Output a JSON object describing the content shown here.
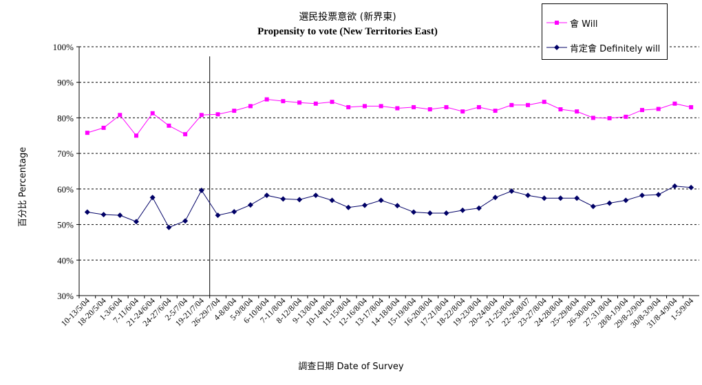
{
  "chart_data": {
    "type": "line",
    "title": "選民投票意欲 (新界東)",
    "subtitle": "Propensity to vote (New Territories East)",
    "ylabel": "百分比 Percentage",
    "xlabel": "調查日期 Date of Survey",
    "ylim": [
      30,
      100
    ],
    "yticks": [
      "30%",
      "40%",
      "50%",
      "60%",
      "70%",
      "80%",
      "90%",
      "100%"
    ],
    "grid": "horizontal dashed",
    "legend_position": "top-right",
    "vertical_marker_after_category": "19-21/7/04",
    "categories": [
      "10-13/5/04",
      "18-20/5/04",
      "1-3/6/04",
      "7-11/6/04",
      "21-24/6/04",
      "24-27/6/04",
      "2-5/7/04",
      "19-21/7/04",
      "26-29/7/04",
      "4-8/8/04",
      "5-9/8/04",
      "6-10/8/04",
      "7-11/8/04",
      "8-12/8/04",
      "9-13/8/04",
      "10-14/8/04",
      "11-15/8/04",
      "12-16/8/04",
      "13-17/8/04",
      "14-18/8/04",
      "15-19/8/04",
      "16-20/8/04",
      "17-21/8/04",
      "18-22/8/04",
      "19-23/8/04",
      "20-24/8/04",
      "21-25/8/04",
      "22-26/8/07",
      "23-27/8/04",
      "24-28/8/04",
      "25-29/8/04",
      "26-30/8/04",
      "27-31/8/04",
      "28/8-1/9/04",
      "29/8-2/9/04",
      "30/8-3/9/04",
      "31/8-4/9/04",
      "1-5/9/04"
    ],
    "series": [
      {
        "name": "會 Will",
        "color": "#ff00ff",
        "marker": "square",
        "values": [
          75.8,
          77.2,
          80.8,
          75.0,
          81.3,
          77.8,
          75.4,
          80.8,
          81.0,
          82.0,
          83.3,
          85.2,
          84.7,
          84.3,
          84.0,
          84.5,
          83.0,
          83.3,
          83.3,
          82.7,
          83.0,
          82.4,
          83.0,
          81.8,
          83.0,
          82.0,
          83.6,
          83.6,
          84.5,
          82.4,
          81.8,
          80.0,
          79.9,
          80.3,
          82.2,
          82.5,
          84.0,
          83.0
        ]
      },
      {
        "name": "肯定會 Definitely will",
        "color": "#000066",
        "marker": "diamond",
        "values": [
          53.5,
          52.8,
          52.6,
          50.8,
          57.6,
          49.2,
          51.0,
          59.6,
          52.6,
          53.6,
          55.5,
          58.2,
          57.2,
          57.0,
          58.2,
          56.8,
          54.8,
          55.4,
          56.8,
          55.3,
          53.5,
          53.2,
          53.2,
          54.0,
          54.6,
          57.6,
          59.4,
          58.2,
          57.4,
          57.4,
          57.4,
          55.1,
          56.0,
          56.8,
          58.2,
          58.4,
          60.8,
          60.4
        ]
      }
    ]
  }
}
